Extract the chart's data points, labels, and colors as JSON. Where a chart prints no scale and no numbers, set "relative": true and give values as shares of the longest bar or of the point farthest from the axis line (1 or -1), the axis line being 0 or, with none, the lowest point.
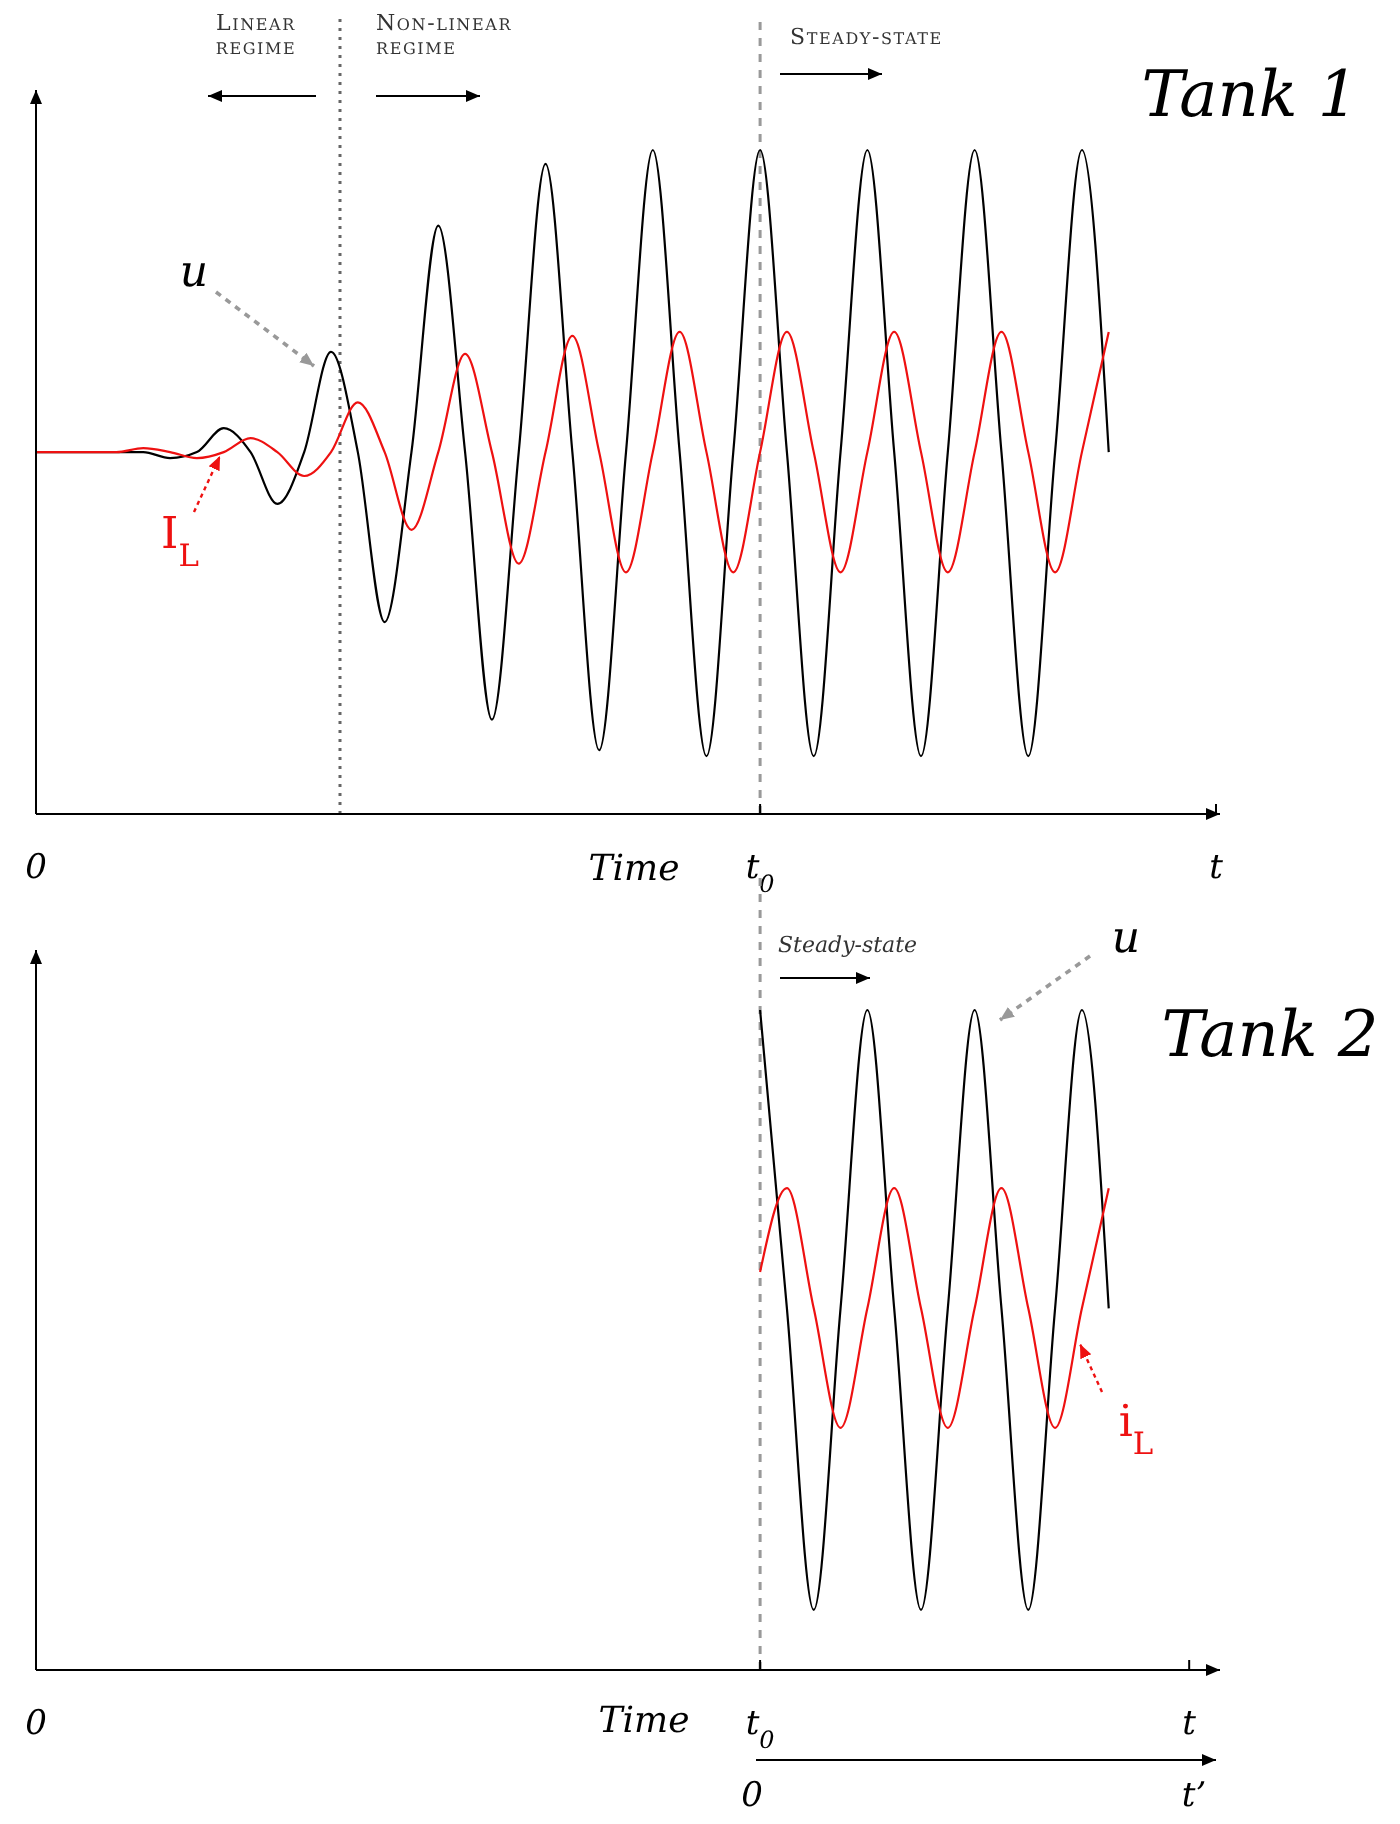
{
  "chart_data": [
    {
      "type": "line",
      "title": "Tank 1",
      "xlabel": "Time",
      "relative": true,
      "categories": [
        "0",
        null,
        null,
        null,
        null,
        null,
        null,
        null,
        null,
        null,
        null,
        null,
        null,
        null,
        null,
        null,
        null,
        null,
        null,
        null,
        null,
        null,
        null,
        null,
        null,
        null,
        null,
        "t$_{0}$",
        null,
        null,
        null,
        null,
        null,
        null,
        null,
        null,
        null,
        null,
        null,
        null,
        null,
        null,
        null,
        null,
        "t"
      ],
      "ref_lines": [
        {
          "axis": "x",
          "value": "t$_{0}$",
          "color": "#999999",
          "line_style": "dashed"
        }
      ],
      "annotations": [
        "Linear regime",
        "Non-linear regime",
        "Steady-state"
      ],
      "series": [
        {
          "name": "u",
          "color": "#000000",
          "values": [
            0.545,
            0.545,
            0.545,
            0.545,
            0.545,
            0.536,
            0.545,
            0.581,
            0.545,
            0.467,
            0.545,
            0.696,
            0.545,
            0.289,
            0.545,
            0.886,
            0.545,
            0.142,
            0.545,
            0.979,
            0.545,
            0.096,
            0.545,
            1,
            0.545,
            0.087,
            0.545,
            1,
            0.545,
            0.087,
            0.545,
            1,
            0.545,
            0.087,
            0.545,
            1,
            0.545,
            0.087,
            0.545,
            1,
            0.545,
            null,
            null,
            null,
            null
          ]
        },
        {
          "name": "I$_{L}$",
          "color": "#ee1111",
          "values": [
            0.545,
            0.545,
            0.545,
            0.545,
            0.551,
            0.545,
            0.536,
            0.545,
            0.566,
            0.545,
            0.509,
            0.545,
            0.62,
            0.545,
            0.428,
            0.545,
            0.693,
            0.545,
            0.377,
            0.545,
            0.72,
            0.545,
            0.364,
            0.545,
            0.726,
            0.545,
            0.364,
            0.545,
            0.726,
            0.545,
            0.364,
            0.545,
            0.726,
            0.545,
            0.364,
            0.545,
            0.726,
            0.545,
            0.364,
            0.545,
            0.726,
            null,
            null,
            null,
            null
          ]
        }
      ]
    },
    {
      "type": "line",
      "title": "Tank 2",
      "xlabel": "Time",
      "relative": true,
      "categories": [
        "0",
        null,
        null,
        null,
        null,
        null,
        null,
        null,
        null,
        null,
        null,
        null,
        null,
        null,
        null,
        null,
        null,
        null,
        null,
        null,
        null,
        null,
        null,
        null,
        null,
        null,
        null,
        "t$_{0}$",
        null,
        null,
        null,
        null,
        null,
        null,
        null,
        null,
        null,
        null,
        null,
        null,
        null,
        null,
        null,
        "t",
        null
      ],
      "ref_lines": [
        {
          "axis": "x",
          "value": "t$_{0}$",
          "color": "#999999",
          "line_style": "dashed"
        }
      ],
      "annotations": [
        "Steady-state",
        "0",
        "t’"
      ],
      "series": [
        {
          "name": "u",
          "color": "#000000",
          "values": [
            null,
            null,
            null,
            null,
            null,
            null,
            null,
            null,
            null,
            null,
            null,
            null,
            null,
            null,
            null,
            null,
            null,
            null,
            null,
            null,
            null,
            null,
            null,
            null,
            null,
            null,
            null,
            1,
            0.548,
            0.091,
            0.548,
            1,
            0.548,
            0.091,
            0.548,
            1,
            0.548,
            0.091,
            0.548,
            1,
            0.548,
            null,
            null,
            null,
            null
          ]
        },
        {
          "name": "i$_{L}$",
          "color": "#ee1111",
          "values": [
            null,
            null,
            null,
            null,
            null,
            null,
            null,
            null,
            null,
            null,
            null,
            null,
            null,
            null,
            null,
            null,
            null,
            null,
            null,
            null,
            null,
            null,
            null,
            null,
            null,
            null,
            null,
            0.603,
            0.73,
            0.548,
            0.367,
            0.548,
            0.73,
            0.548,
            0.367,
            0.548,
            0.73,
            0.548,
            0.367,
            0.548,
            0.73,
            null,
            null,
            null,
            null
          ]
        }
      ]
    }
  ]
}
